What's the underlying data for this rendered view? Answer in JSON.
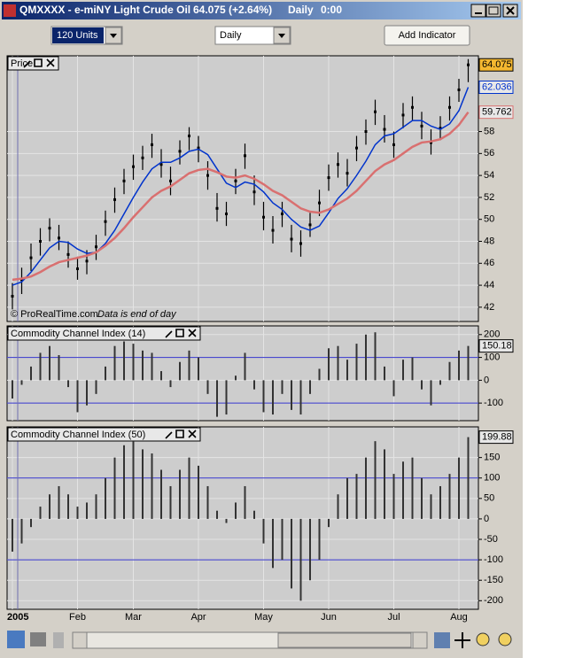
{
  "window": {
    "symbol": "QMXXXX - e-miNY Light Crude Oil",
    "quote": "64.075 (+2.64%)",
    "period": "Daily",
    "time": "0:00"
  },
  "toolbar": {
    "units": "120 Units",
    "timeframe": "Daily",
    "add_indicator": "Add Indicator"
  },
  "chart_data": [
    {
      "type": "ohlc",
      "title": "Price",
      "credit": "© ProRealTime.com",
      "note": "Data is end of day",
      "ylim": [
        40.7,
        64.9
      ],
      "yticks": [
        42,
        44,
        46,
        48,
        50,
        52,
        54,
        56,
        58
      ],
      "grid": true,
      "high": [
        44.2,
        45.6,
        47.8,
        49.2,
        50.1,
        49.5,
        48.0,
        46.6,
        47.2,
        48.6,
        50.8,
        52.9,
        54.6,
        55.9,
        56.7,
        57.8,
        56.4,
        54.8,
        57.2,
        58.4,
        57.6,
        55.3,
        52.4,
        51.6,
        54.6,
        56.9,
        54.0,
        51.6,
        50.3,
        51.6,
        49.5,
        49.0,
        50.6,
        52.7,
        55.0,
        56.1,
        55.5,
        57.6,
        59.1,
        60.9,
        59.5,
        58.0,
        60.6,
        61.2,
        59.8,
        58.2,
        59.4,
        61.2,
        62.8,
        64.6
      ],
      "low": [
        41.8,
        43.2,
        45.3,
        46.7,
        48.0,
        47.2,
        45.6,
        44.5,
        45.0,
        46.3,
        48.5,
        50.6,
        52.3,
        53.6,
        54.5,
        55.6,
        53.8,
        52.2,
        55.0,
        56.3,
        55.2,
        52.7,
        49.8,
        49.4,
        52.3,
        54.6,
        51.3,
        49.0,
        47.8,
        49.3,
        47.0,
        46.6,
        48.4,
        50.3,
        52.6,
        53.8,
        53.0,
        55.3,
        56.8,
        58.6,
        57.0,
        55.6,
        58.3,
        59.0,
        57.3,
        55.9,
        57.2,
        59.0,
        60.7,
        62.5
      ],
      "series": [
        {
          "color": "#000000",
          "values": [
            43.0,
            44.5,
            46.5,
            48.0,
            49.2,
            48.3,
            46.8,
            45.5,
            46.2,
            47.5,
            49.8,
            51.8,
            53.5,
            54.8,
            55.6,
            56.8,
            55.0,
            53.5,
            56.2,
            57.6,
            56.5,
            54.0,
            51.0,
            50.5,
            53.5,
            55.8,
            52.5,
            50.2,
            49.0,
            50.5,
            48.2,
            47.8,
            49.5,
            51.5,
            53.8,
            55.0,
            54.2,
            56.5,
            58.0,
            59.8,
            58.2,
            56.8,
            59.5,
            60.2,
            58.5,
            57.0,
            58.3,
            60.2,
            61.8,
            64.075
          ]
        },
        {
          "color": "#0033cc",
          "values": [
            44.0,
            44.3,
            45.2,
            46.3,
            47.4,
            48.0,
            47.9,
            47.3,
            46.9,
            47.0,
            47.8,
            49.0,
            50.5,
            52.0,
            53.4,
            54.6,
            55.2,
            55.2,
            55.6,
            56.2,
            56.4,
            55.9,
            54.6,
            53.3,
            52.9,
            53.4,
            53.2,
            52.5,
            51.5,
            50.9,
            50.0,
            49.3,
            49.0,
            49.4,
            50.6,
            51.9,
            52.8,
            54.0,
            55.3,
            56.8,
            57.6,
            57.8,
            58.4,
            59.0,
            59.0,
            58.5,
            58.2,
            58.7,
            59.9,
            62.036
          ]
        },
        {
          "color": "#d97070",
          "values": [
            44.5,
            44.6,
            44.8,
            45.2,
            45.7,
            46.1,
            46.3,
            46.5,
            46.7,
            47.0,
            47.6,
            48.3,
            49.2,
            50.2,
            51.1,
            52.0,
            52.6,
            53.0,
            53.6,
            54.2,
            54.5,
            54.6,
            54.3,
            53.9,
            53.8,
            54.0,
            53.7,
            53.2,
            52.6,
            52.2,
            51.6,
            51.0,
            50.7,
            50.6,
            50.9,
            51.4,
            51.9,
            52.6,
            53.5,
            54.4,
            55.0,
            55.4,
            56.0,
            56.6,
            57.0,
            57.1,
            57.3,
            57.8,
            58.6,
            59.762
          ]
        }
      ]
    },
    {
      "type": "bar",
      "title": "Commodity Channel Index (14)",
      "ylim": [
        -177,
        238
      ],
      "yticks": [
        -100,
        0,
        100,
        200
      ],
      "levels": [
        100,
        -100
      ],
      "level_color": "#3333cc",
      "color": "#333333",
      "grid": true,
      "values": [
        -80,
        -20,
        60,
        120,
        150,
        110,
        -30,
        -140,
        -110,
        -60,
        60,
        150,
        170,
        160,
        130,
        120,
        40,
        -30,
        80,
        130,
        100,
        -60,
        -160,
        -150,
        20,
        120,
        -40,
        -140,
        -150,
        -60,
        -130,
        -150,
        -60,
        50,
        140,
        150,
        90,
        160,
        200,
        210,
        60,
        -70,
        90,
        100,
        -40,
        -110,
        -20,
        80,
        130,
        150.18
      ]
    },
    {
      "type": "bar",
      "title": "Commodity Channel Index (50)",
      "ylim": [
        -221,
        225
      ],
      "yticks": [
        -200,
        -150,
        -100,
        -50,
        0,
        50,
        100,
        150
      ],
      "levels": [
        100,
        -100
      ],
      "level_color": "#3333cc",
      "color": "#333333",
      "grid": true,
      "categories": [
        "2005",
        null,
        null,
        null,
        null,
        null,
        null,
        "Feb",
        null,
        null,
        null,
        null,
        null,
        "Mar",
        null,
        null,
        null,
        null,
        null,
        null,
        "Apr",
        null,
        null,
        null,
        null,
        null,
        null,
        "May",
        null,
        null,
        null,
        null,
        null,
        null,
        "Jun",
        null,
        null,
        null,
        null,
        null,
        null,
        "Jul",
        null,
        null,
        null,
        null,
        null,
        null,
        "Aug",
        null
      ],
      "values": [
        -80,
        -60,
        -20,
        30,
        60,
        80,
        60,
        30,
        40,
        60,
        100,
        150,
        180,
        190,
        170,
        160,
        120,
        80,
        120,
        150,
        130,
        80,
        20,
        -10,
        40,
        80,
        20,
        -60,
        -120,
        -100,
        -170,
        -200,
        -150,
        -100,
        -20,
        60,
        100,
        110,
        150,
        190,
        170,
        110,
        140,
        150,
        100,
        60,
        80,
        110,
        150,
        199.88
      ]
    }
  ]
}
